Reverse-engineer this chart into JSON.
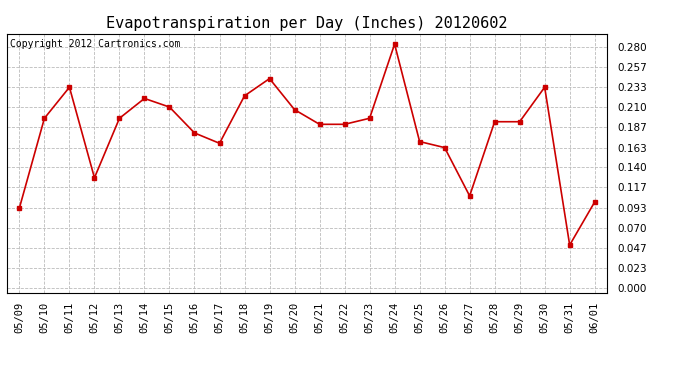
{
  "title": "Evapotranspiration per Day (Inches) 20120602",
  "copyright": "Copyright 2012 Cartronics.com",
  "dates": [
    "05/09",
    "05/10",
    "05/11",
    "05/12",
    "05/13",
    "05/14",
    "05/15",
    "05/16",
    "05/17",
    "05/18",
    "05/19",
    "05/20",
    "05/21",
    "05/22",
    "05/23",
    "05/24",
    "05/25",
    "05/26",
    "05/27",
    "05/28",
    "05/29",
    "05/30",
    "05/31",
    "06/01"
  ],
  "values": [
    0.093,
    0.197,
    0.233,
    0.128,
    0.197,
    0.22,
    0.21,
    0.18,
    0.168,
    0.223,
    0.243,
    0.207,
    0.19,
    0.19,
    0.197,
    0.283,
    0.17,
    0.163,
    0.107,
    0.193,
    0.193,
    0.233,
    0.05,
    0.1
  ],
  "line_color": "#cc0000",
  "marker_color": "#cc0000",
  "bg_color": "#ffffff",
  "plot_bg_color": "#ffffff",
  "grid_color": "#bbbbbb",
  "yticks": [
    0.0,
    0.023,
    0.047,
    0.07,
    0.093,
    0.117,
    0.14,
    0.163,
    0.187,
    0.21,
    0.233,
    0.257,
    0.28
  ],
  "ylim": [
    -0.005,
    0.295
  ],
  "title_fontsize": 11,
  "copyright_fontsize": 7,
  "tick_fontsize": 7.5
}
